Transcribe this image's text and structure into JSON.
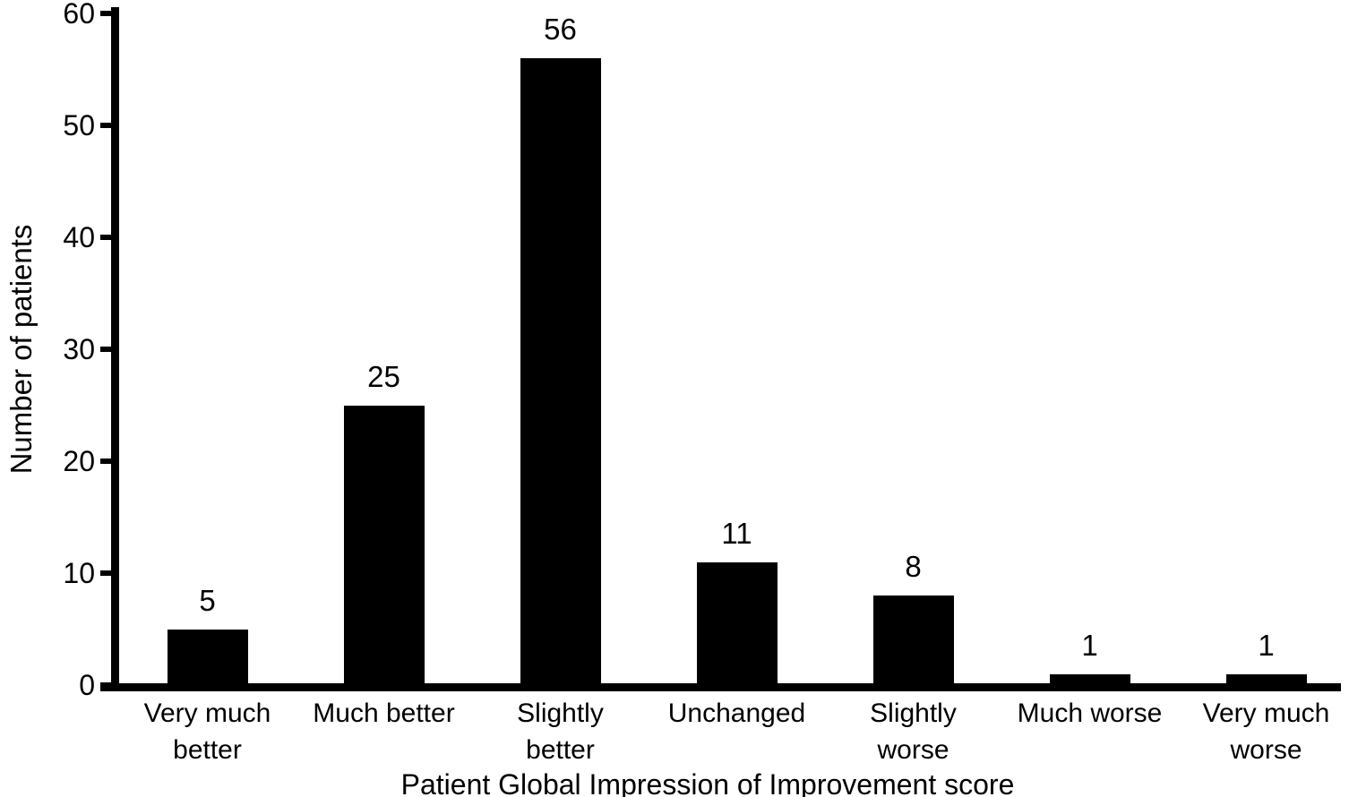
{
  "figure": {
    "background": "#ffffff",
    "ink_color": "#000000"
  },
  "chart_data": {
    "type": "bar",
    "title": "",
    "xlabel": "Patient Global Impression of Improvement score",
    "ylabel": "Number of patients",
    "categories": [
      "Very much better",
      "Much better",
      "Slightly better",
      "Unchanged",
      "Slightly worse",
      "Much worse",
      "Very much worse"
    ],
    "category_lines": [
      [
        "Very much",
        "better"
      ],
      [
        "Much better"
      ],
      [
        "Slightly",
        "better"
      ],
      [
        "Unchanged"
      ],
      [
        "Slightly",
        "worse"
      ],
      [
        "Much worse"
      ],
      [
        "Very much",
        "worse"
      ]
    ],
    "values": [
      5,
      25,
      56,
      11,
      8,
      1,
      1
    ],
    "bar_value_labels": [
      "5",
      "25",
      "56",
      "11",
      "8",
      "1",
      "1"
    ],
    "yticks": [
      0,
      10,
      20,
      30,
      40,
      50,
      60
    ],
    "ylim": [
      0,
      60
    ],
    "bar_color": "#000000",
    "axis_color": "#000000",
    "grid": false,
    "legend": "none"
  }
}
